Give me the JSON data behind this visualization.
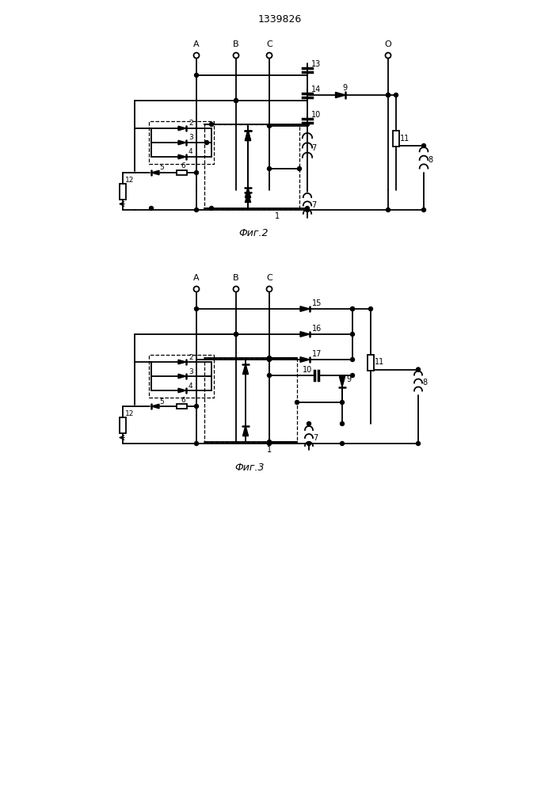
{
  "title": "1339826",
  "fig1_label": "Фиг.2",
  "fig2_label": "Фиг.3",
  "bg_color": "#ffffff",
  "lw": 1.3
}
